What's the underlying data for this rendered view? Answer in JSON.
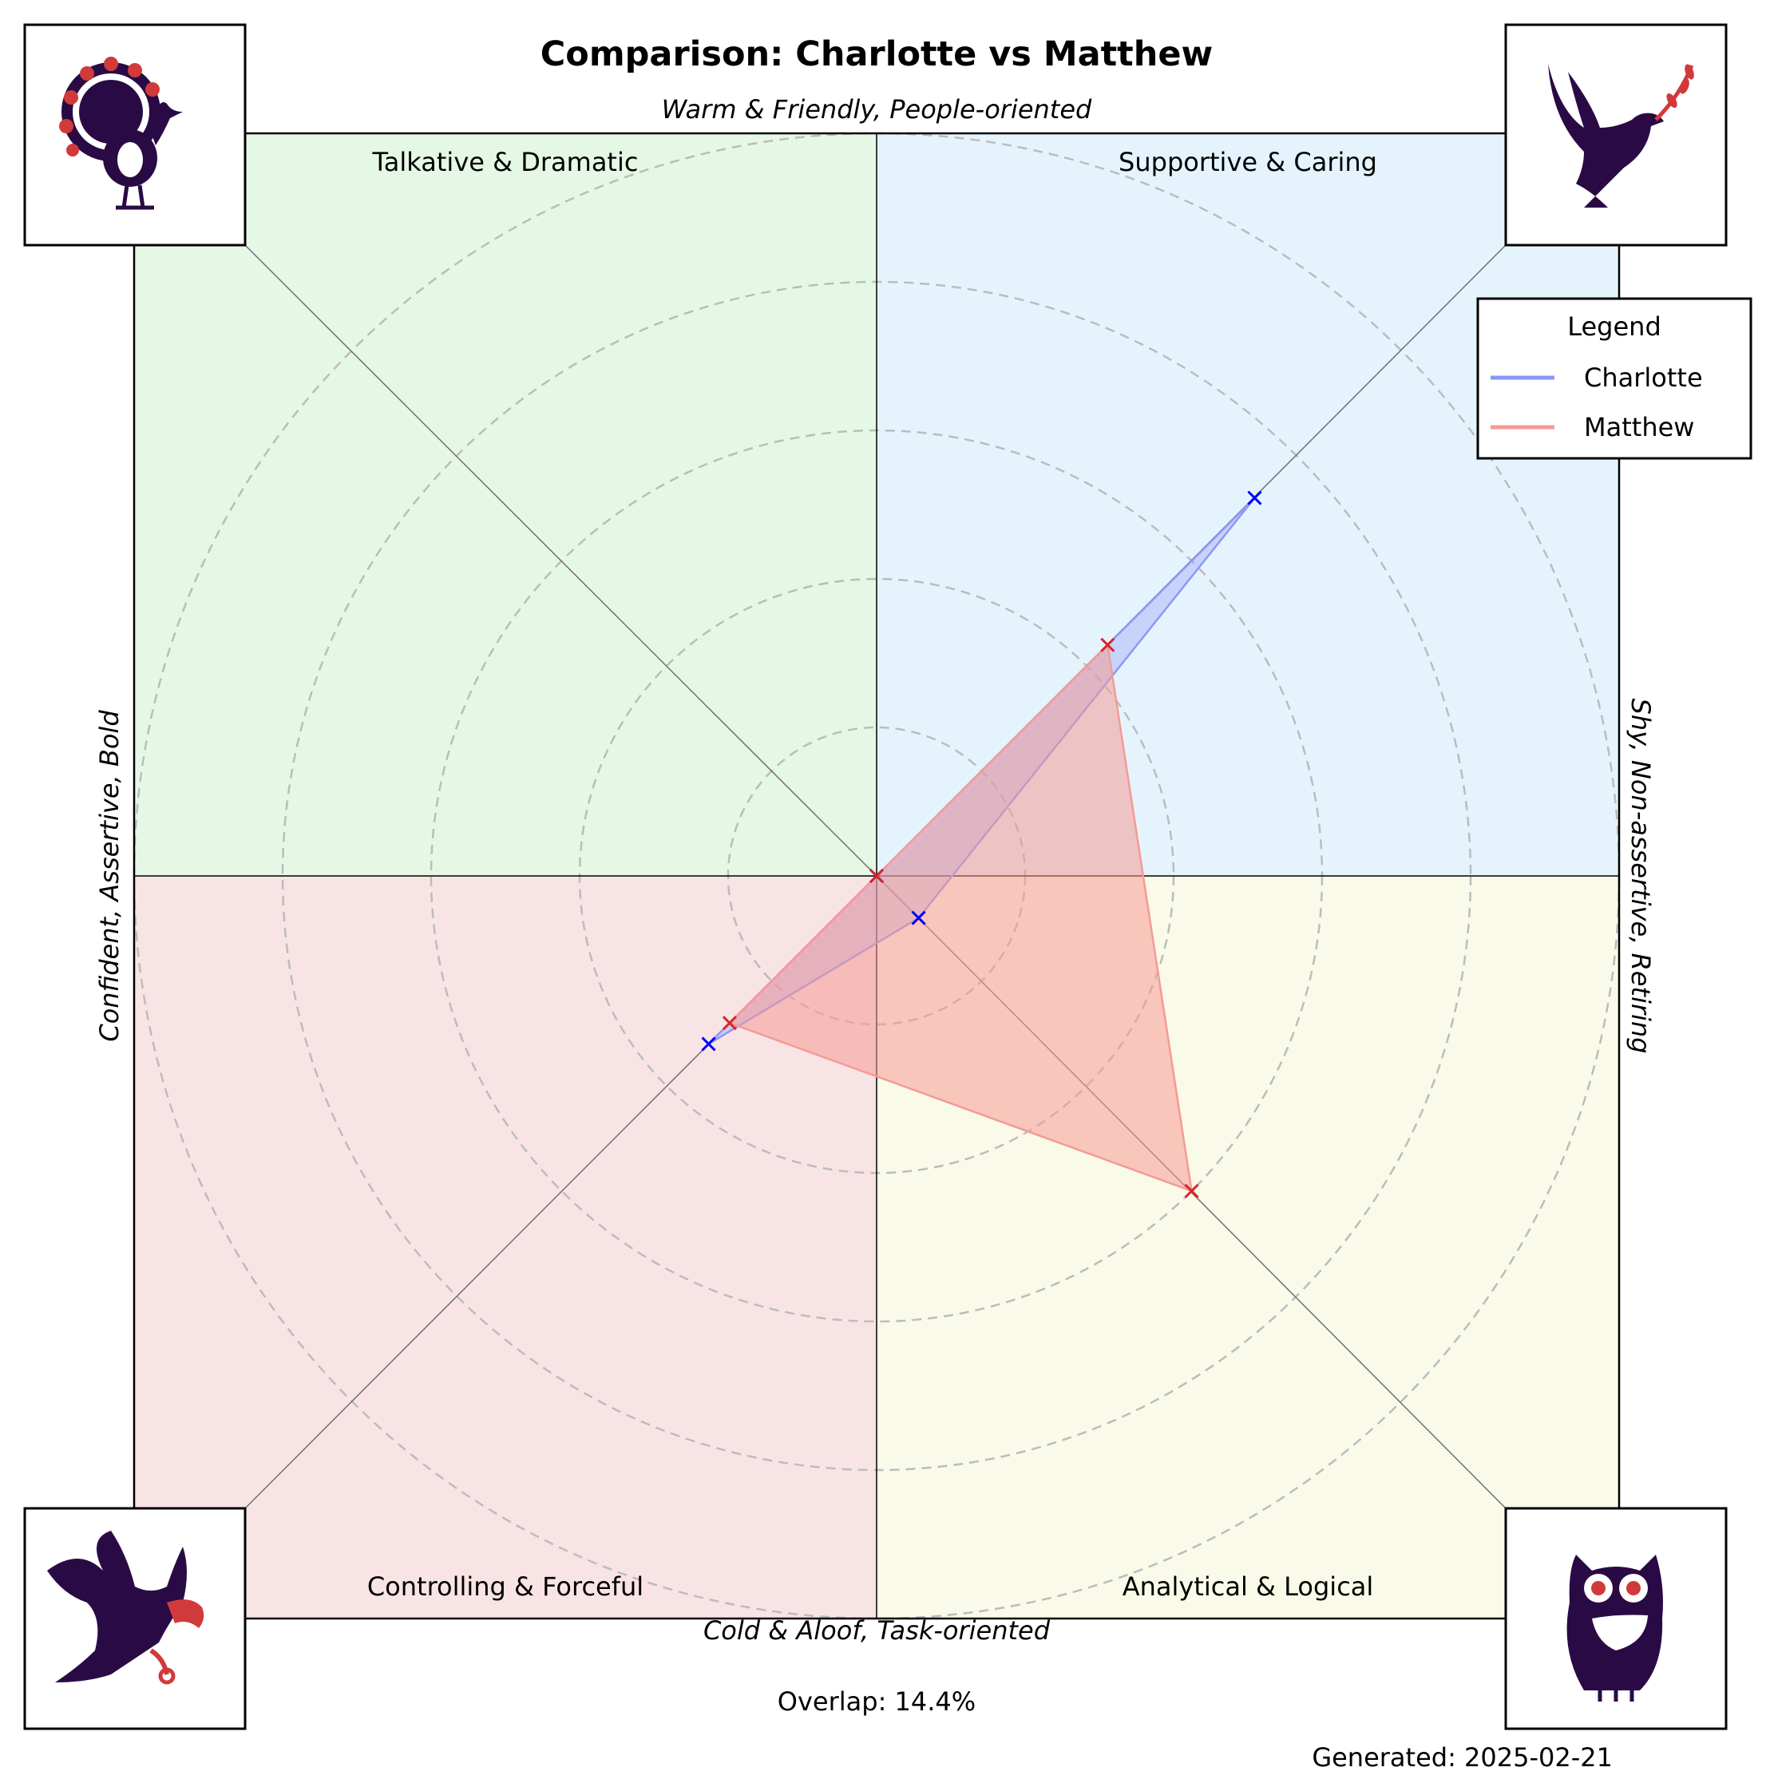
{
  "chart_data": {
    "type": "radar",
    "title": "Comparison: Charlotte vs Matthew",
    "axis_labels": {
      "top": "Warm & Friendly, People-oriented",
      "bottom": "Cold & Aloof, Task-oriented",
      "left": "Confident, Assertive, Bold",
      "right": "Shy, Non-assertive, Retiring"
    },
    "quadrants": [
      {
        "label": "Talkative & Dramatic",
        "position": "top-left",
        "color": "#e5f8e6",
        "icon": "peacock-icon"
      },
      {
        "label": "Supportive & Caring",
        "position": "top-right",
        "color": "#e5f4fc",
        "icon": "dove-icon"
      },
      {
        "label": "Controlling & Forceful",
        "position": "bottom-left",
        "color": "#f9e4e5",
        "icon": "eagle-icon"
      },
      {
        "label": "Analytical & Logical",
        "position": "bottom-right",
        "color": "#fafae9",
        "icon": "owl-icon"
      }
    ],
    "directions": [
      "Supportive & Caring",
      "Analytical & Logical",
      "Controlling & Forceful",
      "Talkative & Dramatic"
    ],
    "rlim": [
      0,
      5
    ],
    "rings": [
      1,
      2,
      3,
      4,
      5
    ],
    "grid": true,
    "series": [
      {
        "name": "Charlotte",
        "values": [
          3.6,
          0.4,
          1.6,
          0.0
        ],
        "color": "#0000ff",
        "line_color": "#8b97f8",
        "fill_opacity": 0.35
      },
      {
        "name": "Matthew",
        "values": [
          2.2,
          3.0,
          1.4,
          0.0
        ],
        "color": "#d62728",
        "line_color": "#f59a96",
        "fill_opacity": 0.55
      }
    ],
    "legend": {
      "title": "Legend",
      "position": "top-right"
    },
    "overlap_text": "Overlap: 14.4%",
    "generated_text": "Generated: 2025-02-21"
  },
  "colors": {
    "icon_dark": "#2a0a45",
    "icon_accent": "#d13a3a",
    "ring": "#bcbcbc",
    "spoke": "#707070"
  }
}
